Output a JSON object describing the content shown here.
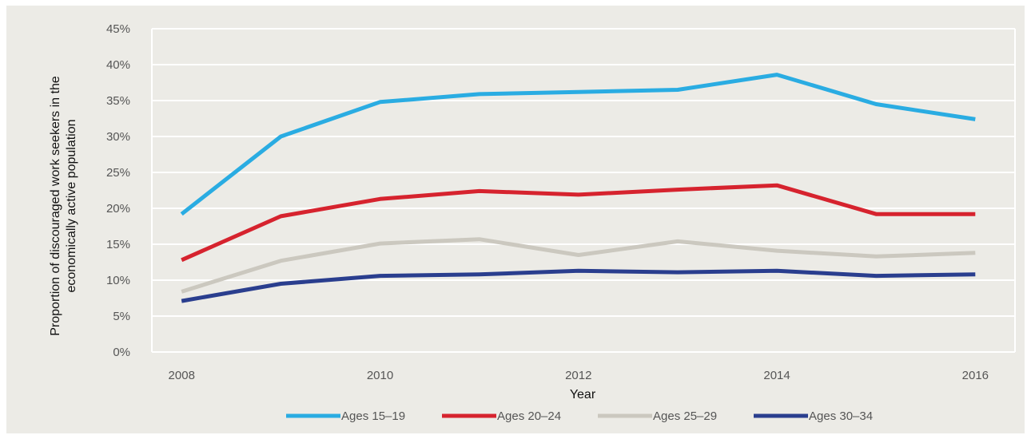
{
  "colors": {
    "background": "#ecebe6",
    "grid": "#ffffff",
    "text": "#555555",
    "series": [
      "#2aace2",
      "#d6232e",
      "#cbc8bf",
      "#2a3e8e"
    ]
  },
  "chart_data": {
    "type": "line",
    "title": "",
    "xlabel": "Year",
    "ylabel": "Proportion of discouraged work seekers in the economically active population",
    "ylabel_lines": [
      "Proportion of discouraged work seekers in the",
      "economically active population"
    ],
    "x": [
      2008,
      2009,
      2010,
      2011,
      2012,
      2013,
      2014,
      2015,
      2016
    ],
    "x_tick_labels": [
      "2008",
      "2010",
      "2012",
      "2014",
      "2016"
    ],
    "x_tick_values": [
      2008,
      2010,
      2012,
      2014,
      2016
    ],
    "xlim": [
      2007.7,
      2016.4
    ],
    "ylim": [
      0,
      45
    ],
    "y_ticks": [
      0,
      5,
      10,
      15,
      20,
      25,
      30,
      35,
      40,
      45
    ],
    "y_tick_labels": [
      "0%",
      "5%",
      "10%",
      "15%",
      "20%",
      "25%",
      "30%",
      "35%",
      "40%",
      "45%"
    ],
    "grid": "horizontal",
    "legend_position": "bottom",
    "series": [
      {
        "name": "Ages 15–19",
        "values": [
          19.2,
          30.0,
          34.8,
          35.9,
          36.2,
          36.5,
          38.6,
          34.5,
          32.4
        ]
      },
      {
        "name": "Ages 20–24",
        "values": [
          12.8,
          18.9,
          21.3,
          22.4,
          21.9,
          22.6,
          23.2,
          19.2,
          19.2
        ]
      },
      {
        "name": "Ages 25–29",
        "values": [
          8.4,
          12.7,
          15.1,
          15.7,
          13.5,
          15.4,
          14.1,
          13.3,
          13.8
        ]
      },
      {
        "name": "Ages 30–34",
        "values": [
          7.1,
          9.5,
          10.6,
          10.8,
          11.3,
          11.1,
          11.3,
          10.6,
          10.8
        ]
      }
    ]
  }
}
